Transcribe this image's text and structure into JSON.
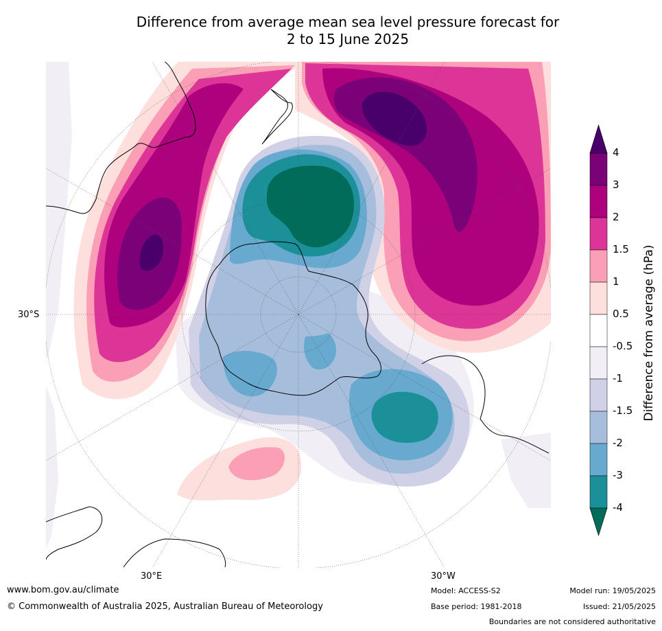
{
  "title": {
    "line1": "Difference from average mean sea level pressure forecast for",
    "line2": "2 to 15 June 2025"
  },
  "axis_labels": {
    "lat": "30°S",
    "lon_left": "30°E",
    "lon_right": "30°W"
  },
  "colorbar": {
    "title": "Difference from average (hPa)",
    "ticks": [
      "4",
      "3",
      "2",
      "1.5",
      "1",
      "0.5",
      "-0.5",
      "-1",
      "-1.5",
      "-2",
      "-3",
      "-4"
    ],
    "bins": [
      {
        "range": "3 to 4",
        "color": "#7a0177"
      },
      {
        "range": "2 to 3",
        "color": "#ae017e"
      },
      {
        "range": "1.5 to 2",
        "color": "#dd3497"
      },
      {
        "range": "1 to 1.5",
        "color": "#fa9fb5"
      },
      {
        "range": "0.5 to 1",
        "color": "#fde0dd"
      },
      {
        "range": "-0.5 to 0.5",
        "color": "#ffffff"
      },
      {
        "range": "-1 to -0.5",
        "color": "#f2eef5"
      },
      {
        "range": "-1.5 to -1",
        "color": "#d0d1e6"
      },
      {
        "range": "-2 to -1.5",
        "color": "#a6bddb"
      },
      {
        "range": "-3 to -2",
        "color": "#67a9cf"
      },
      {
        "range": "-4 to -3",
        "color": "#1c9099"
      }
    ],
    "over_color": "#49006a",
    "under_color": "#016c59"
  },
  "footer": {
    "website": "www.bom.gov.au/climate",
    "copyright": "© Commonwealth of Australia 2025, Australian Bureau of Meteorology",
    "model": "Model: ACCESS-S2",
    "base_period": "Base period: 1981-2018",
    "model_run": "Model run: 19/05/2025",
    "issued": "Issued: 21/05/2025",
    "disclaimer": "Boundaries are not considered authoritative"
  }
}
